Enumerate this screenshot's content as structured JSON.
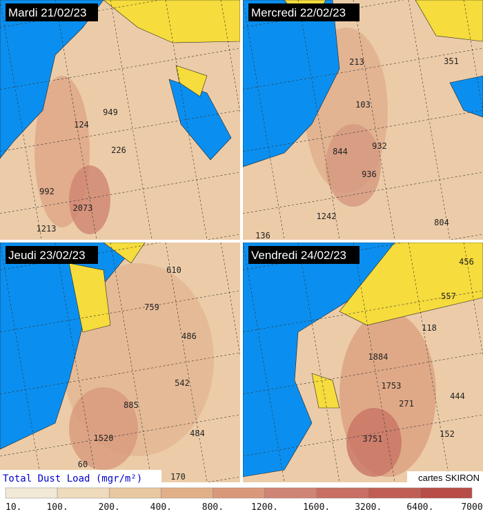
{
  "panels": [
    {
      "title": "Mardi 21/02/23",
      "numbers": [
        "949",
        "124",
        "226",
        "992",
        "2073",
        "1213"
      ]
    },
    {
      "title": "Mercredi 22/02/23",
      "numbers": [
        "213",
        "351",
        "103",
        "844",
        "932",
        "936",
        "1242",
        "804",
        "136"
      ]
    },
    {
      "title": "Jeudi 23/02/23",
      "numbers": [
        "610",
        "759",
        "486",
        "542",
        "885",
        "1520",
        "484",
        "60",
        "170"
      ]
    },
    {
      "title": "Vendredi 24/02/23",
      "numbers": [
        "456",
        "557",
        "118",
        "1884",
        "1753",
        "271",
        "444",
        "152",
        "3751"
      ]
    }
  ],
  "legend": {
    "title": "Total Dust Load (mgr/m²)",
    "labels": [
      "10.",
      "100.",
      "200.",
      "400.",
      "800.",
      "1200.",
      "1600.",
      "3200.",
      "6400.",
      "7000"
    ],
    "colors": [
      "#f2e8d6",
      "#eedbbb",
      "#e8c8a0",
      "#e2b088",
      "#da987a",
      "#d08474",
      "#c86e62",
      "#c05e54",
      "#b84c46"
    ]
  },
  "credit": "cartes SKIRON"
}
